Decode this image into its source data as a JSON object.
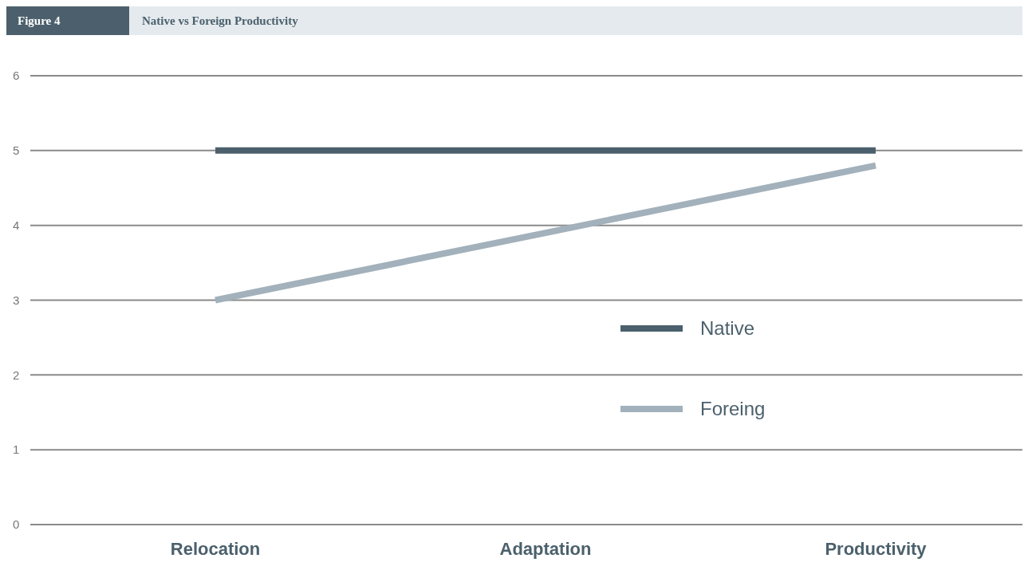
{
  "chart_data": {
    "type": "line",
    "title": "Native vs Foreign Productivity",
    "annotations": [
      "Figure 4"
    ],
    "categories": [
      "Relocation",
      "Adaptation",
      "Productivity"
    ],
    "series": [
      {
        "name": "Native",
        "color": "#4b606c",
        "values": [
          5,
          5,
          5
        ]
      },
      {
        "name": "Foreing",
        "color": "#a2b1bb",
        "values": [
          3,
          3.9,
          4.8
        ]
      }
    ],
    "ylim": [
      0,
      6
    ],
    "yticks": [
      0,
      1,
      2,
      3,
      4,
      5,
      6
    ],
    "grid": "y",
    "legend": "right",
    "marker": "none",
    "line_style": "solid"
  }
}
